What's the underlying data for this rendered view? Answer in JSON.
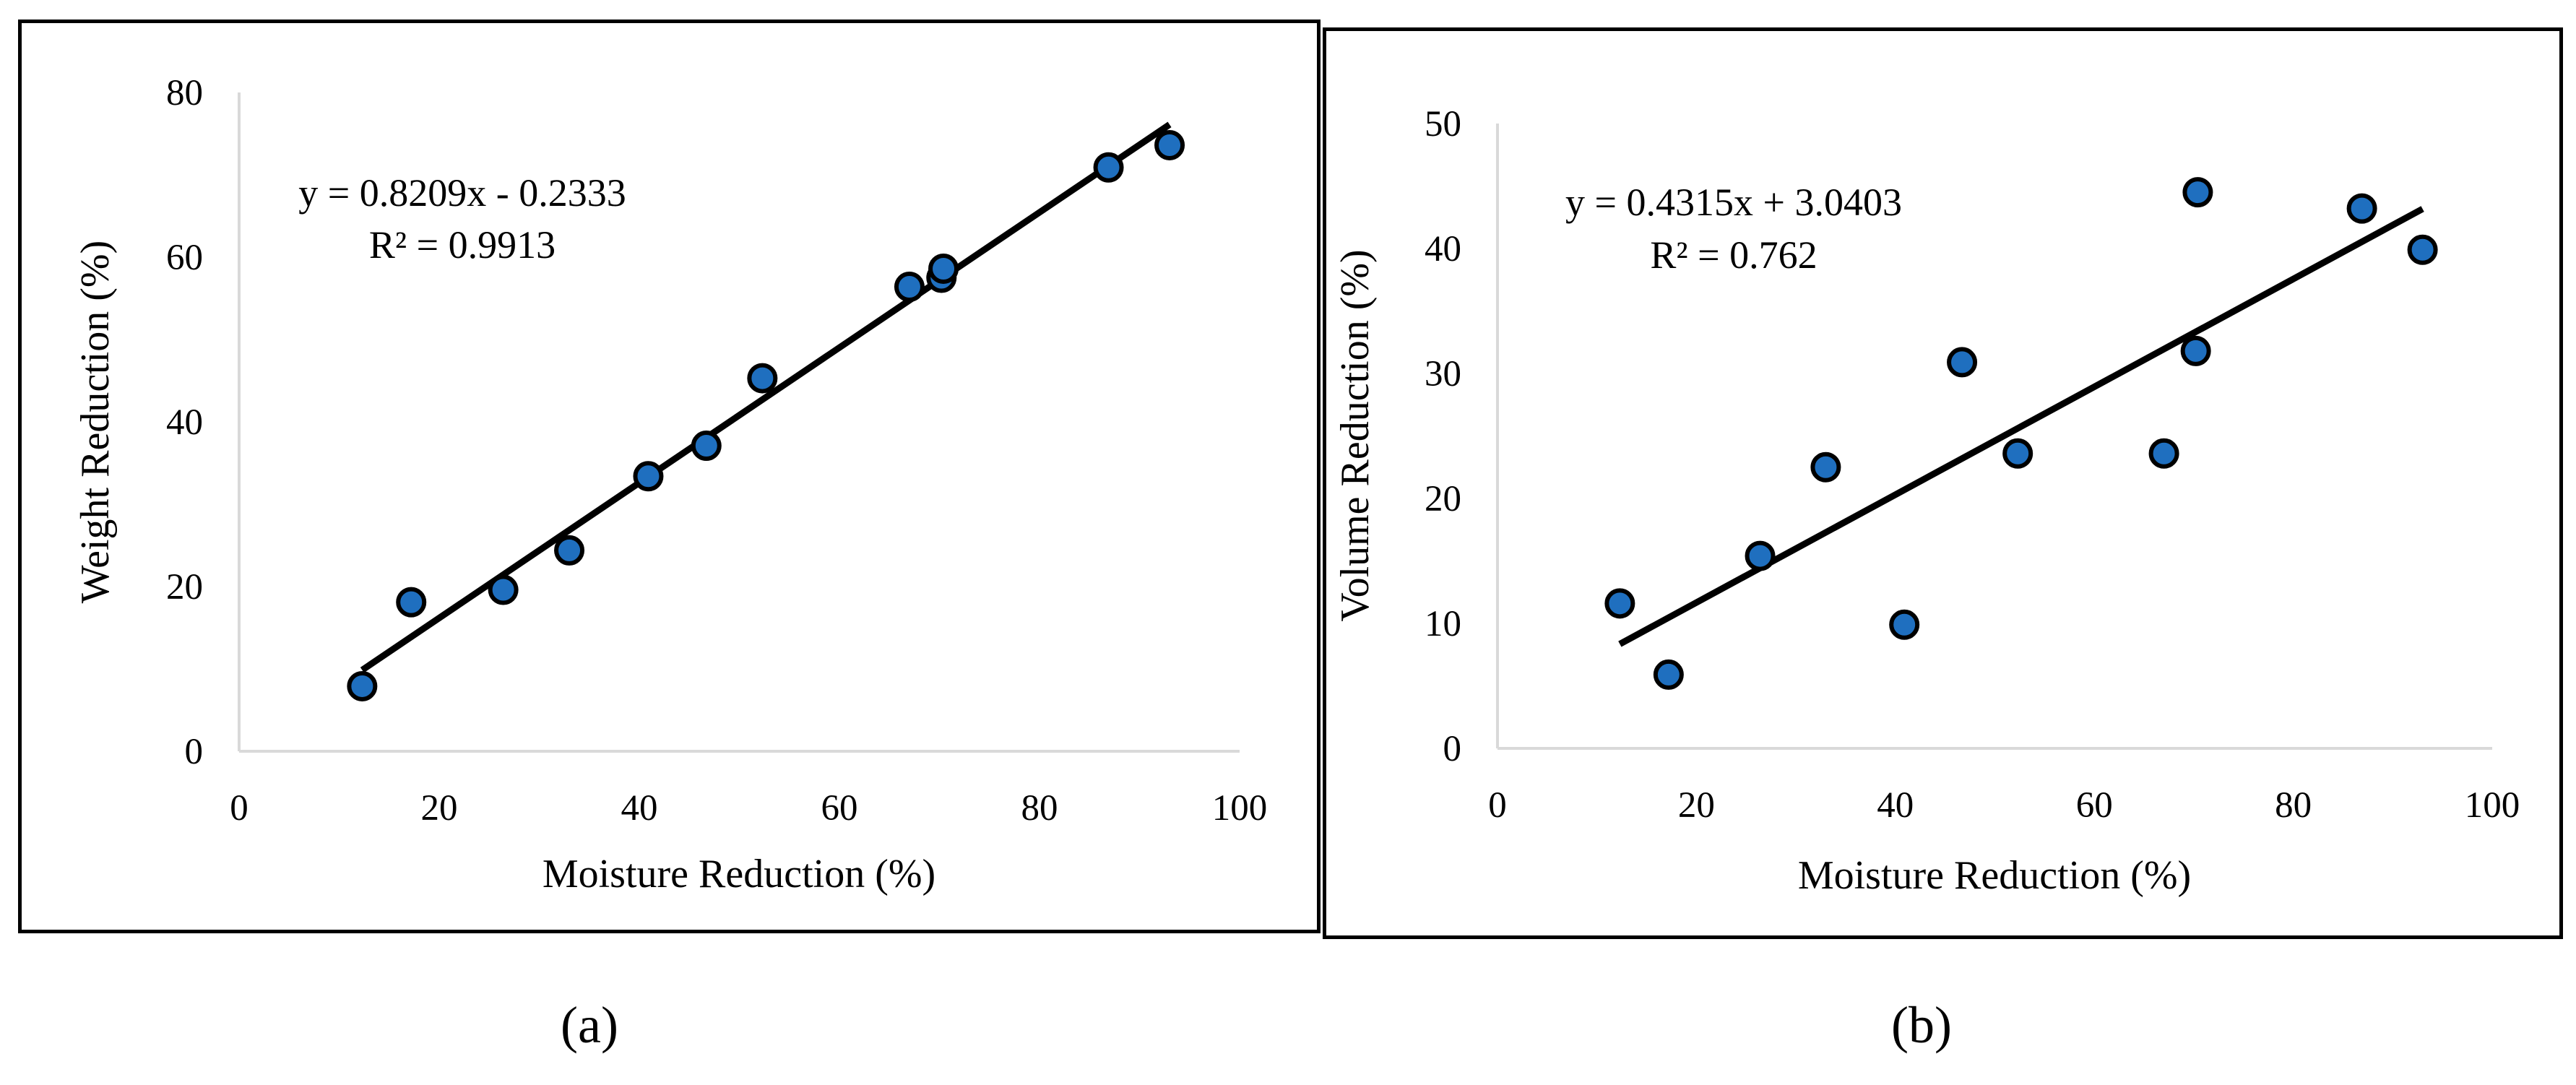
{
  "chart_data": [
    {
      "type": "scatter",
      "panel_label": "(a)",
      "xlabel": "Moisture Reduction (%)",
      "ylabel": "Weight Reduction (%)",
      "xlim": [
        0,
        100
      ],
      "ylim": [
        0,
        80
      ],
      "x_ticks": [
        0,
        20,
        40,
        60,
        80,
        100
      ],
      "y_ticks": [
        0,
        20,
        40,
        60,
        80
      ],
      "points": [
        {
          "x": 12.3,
          "y": 7.9
        },
        {
          "x": 17.2,
          "y": 18.1
        },
        {
          "x": 26.4,
          "y": 19.6
        },
        {
          "x": 33.0,
          "y": 24.4
        },
        {
          "x": 40.9,
          "y": 33.4
        },
        {
          "x": 46.7,
          "y": 37.1
        },
        {
          "x": 52.3,
          "y": 45.3
        },
        {
          "x": 67.0,
          "y": 56.4
        },
        {
          "x": 70.2,
          "y": 57.5
        },
        {
          "x": 70.4,
          "y": 58.6
        },
        {
          "x": 86.9,
          "y": 70.9
        },
        {
          "x": 93.0,
          "y": 73.6
        }
      ],
      "trendline": {
        "slope": 0.8209,
        "intercept": -0.2333,
        "x_range": [
          12.3,
          93.0
        ]
      },
      "equation": "y = 0.8209x - 0.2333",
      "r_squared": "R² = 0.9913",
      "grid": false
    },
    {
      "type": "scatter",
      "panel_label": "(b)",
      "xlabel": "Moisture Reduction (%)",
      "ylabel": "Volume Reduction (%)",
      "xlim": [
        0,
        100
      ],
      "ylim": [
        0,
        50
      ],
      "x_ticks": [
        0,
        20,
        40,
        60,
        80,
        100
      ],
      "y_ticks": [
        0,
        10,
        20,
        30,
        40,
        50
      ],
      "points": [
        {
          "x": 12.3,
          "y": 11.6
        },
        {
          "x": 17.2,
          "y": 5.9
        },
        {
          "x": 26.4,
          "y": 15.4
        },
        {
          "x": 33.0,
          "y": 22.5
        },
        {
          "x": 40.9,
          "y": 9.9
        },
        {
          "x": 46.7,
          "y": 30.9
        },
        {
          "x": 52.3,
          "y": 23.6
        },
        {
          "x": 67.0,
          "y": 23.6
        },
        {
          "x": 70.2,
          "y": 31.8
        },
        {
          "x": 70.4,
          "y": 44.5
        },
        {
          "x": 86.9,
          "y": 43.2
        },
        {
          "x": 93.0,
          "y": 39.9
        }
      ],
      "trendline": {
        "slope": 0.4315,
        "intercept": 3.0403,
        "x_range": [
          12.3,
          93.0
        ]
      },
      "equation": "y = 0.4315x + 3.0403",
      "r_squared": "R² = 0.762",
      "grid": false
    }
  ],
  "colors": {
    "marker_fill": "#1f6fbf",
    "marker_edge": "#000000",
    "trendline": "#000000",
    "axis_line": "#d9d9d9"
  }
}
